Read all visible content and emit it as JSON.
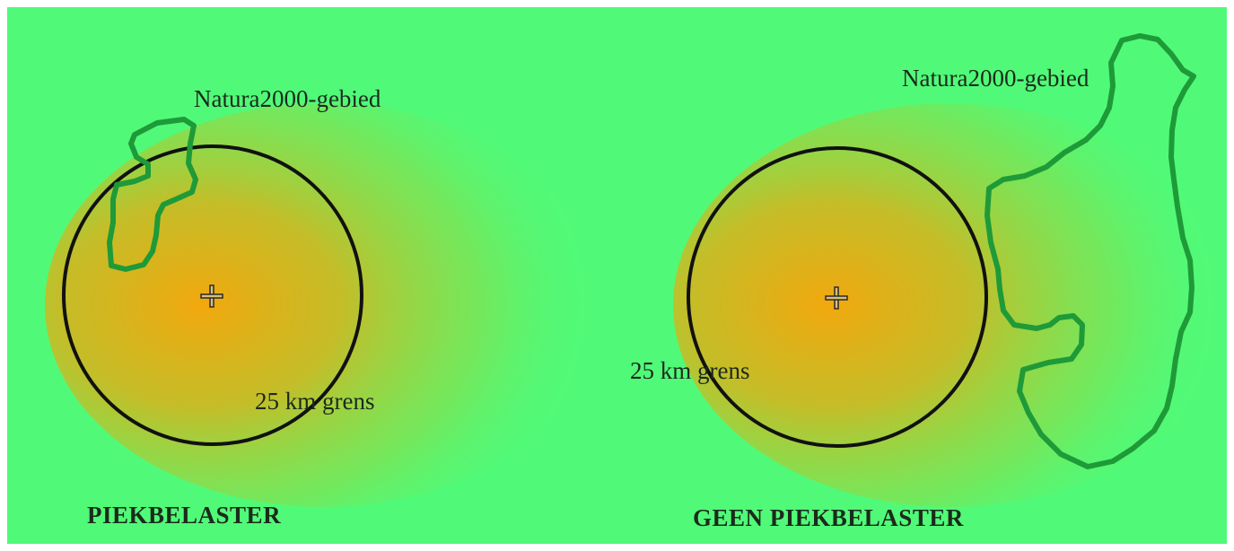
{
  "panels": [
    {
      "title": "PIEKBELASTER",
      "area_label": "Natura2000-gebied",
      "radius_label": "25 km grens"
    },
    {
      "title": "GEEN PIEKBELASTER",
      "area_label": "Natura2000-gebied",
      "radius_label": "25 km grens"
    }
  ],
  "colors": {
    "background": "#50fa78",
    "deposition_center": "#f2a80e",
    "natura_outline": "#1f9a38",
    "circle": "#111111"
  }
}
